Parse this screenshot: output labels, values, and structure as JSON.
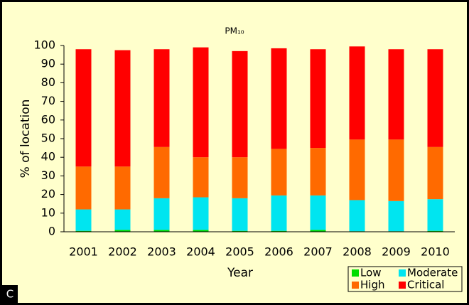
{
  "chart_data": {
    "type": "stacked_bar",
    "title": "PM₁₀",
    "panel_label": "C",
    "x_label": "Year",
    "y_label": "% of location",
    "categories": [
      "2001",
      "2002",
      "2003",
      "2004",
      "2005",
      "2006",
      "2007",
      "2008",
      "2009",
      "2010"
    ],
    "series": [
      {
        "name": "Low",
        "color": "#00dd00",
        "values": [
          0.5,
          1,
          1,
          1,
          0.5,
          0.5,
          1,
          0.3,
          0.3,
          0.5
        ]
      },
      {
        "name": "Moderate",
        "color": "#00e5f0",
        "values": [
          11.5,
          11,
          17,
          17.5,
          17.5,
          19,
          18.5,
          16.7,
          16.2,
          17
        ]
      },
      {
        "name": "High",
        "color": "#ff6a00",
        "values": [
          23,
          23,
          27.5,
          21.5,
          22,
          25,
          25.5,
          32.5,
          33,
          28
        ]
      },
      {
        "name": "Critical",
        "color": "#ff0000",
        "values": [
          63,
          62.5,
          52.5,
          59,
          57,
          54,
          53,
          50,
          48.5,
          52.5
        ]
      }
    ],
    "ylim": [
      0,
      100
    ],
    "yticks": [
      0,
      10,
      20,
      30,
      40,
      50,
      60,
      70,
      80,
      90,
      100
    ]
  }
}
